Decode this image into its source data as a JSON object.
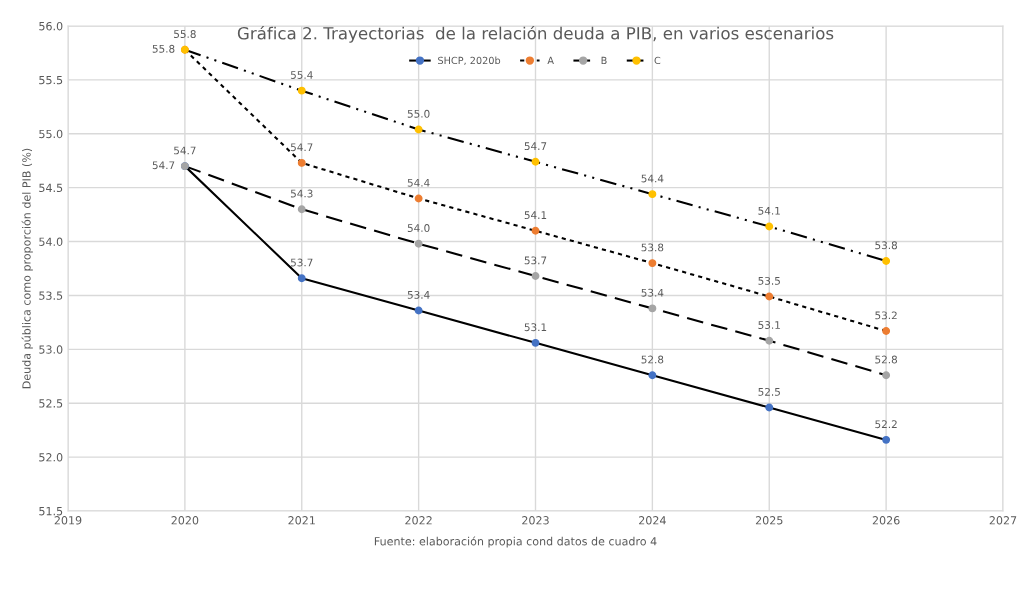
{
  "chart_data": {
    "type": "line",
    "title": "Gráfica 2. Trayectorias  de la relación deuda a PIB, en varios escenarios",
    "ylabel": "Deuda pública como proporción del PIB (%)",
    "annotations": [
      "Fuente: elaboración propia cond datos de cuadro 4"
    ],
    "x": [
      2020,
      2021,
      2022,
      2023,
      2024,
      2025,
      2026
    ],
    "series": [
      {
        "name": "SHCP, 2020b",
        "color": "#4472c4",
        "line_style": "solid",
        "values": [
          54.7,
          53.66,
          53.36,
          53.06,
          52.76,
          52.46,
          52.16
        ],
        "value_labels": [
          "54.7",
          "53.7",
          "53.4",
          "53.1",
          "52.8",
          "52.5",
          "52.2"
        ]
      },
      {
        "name": "A",
        "color": "#ed7d31",
        "line_style": "dotted",
        "values": [
          55.78,
          54.73,
          54.4,
          54.1,
          53.8,
          53.49,
          53.17
        ],
        "value_labels": [
          "55.8",
          "54.7",
          "54.4",
          "54.1",
          "53.8",
          "53.5",
          "53.2"
        ]
      },
      {
        "name": "B",
        "color": "#a5a5a5",
        "line_style": "dashed",
        "values": [
          54.7,
          54.3,
          53.98,
          53.68,
          53.38,
          53.08,
          52.76
        ],
        "value_labels": [
          "54.7",
          "54.3",
          "54.0",
          "53.7",
          "53.4",
          "53.1",
          "52.8"
        ]
      },
      {
        "name": "C",
        "color": "#ffc000",
        "line_style": "dashdot",
        "values": [
          55.78,
          55.4,
          55.04,
          54.74,
          54.44,
          54.14,
          53.82
        ],
        "value_labels": [
          "55.8",
          "55.4",
          "55.0",
          "54.7",
          "54.4",
          "54.1",
          "53.8"
        ]
      }
    ],
    "xlim": [
      2019,
      2027
    ],
    "xticks": [
      2019,
      2020,
      2021,
      2022,
      2023,
      2024,
      2025,
      2026,
      2027
    ],
    "ylim": [
      51.5,
      56.0
    ],
    "yticks": [
      {
        "value": 51.5,
        "label": "51.5"
      },
      {
        "value": 52.0,
        "label": "52.0"
      },
      {
        "value": 52.5,
        "label": "52.5"
      },
      {
        "value": 53.0,
        "label": "53.0"
      },
      {
        "value": 53.5,
        "label": "53.5"
      },
      {
        "value": 54.0,
        "label": "54.0"
      },
      {
        "value": 54.5,
        "label": "54.5"
      },
      {
        "value": 55.0,
        "label": "55.0"
      },
      {
        "value": 55.5,
        "label": "55.5"
      },
      {
        "value": 56.0,
        "label": "56.0"
      }
    ],
    "grid": true,
    "legend": "top",
    "marker": "circle"
  }
}
